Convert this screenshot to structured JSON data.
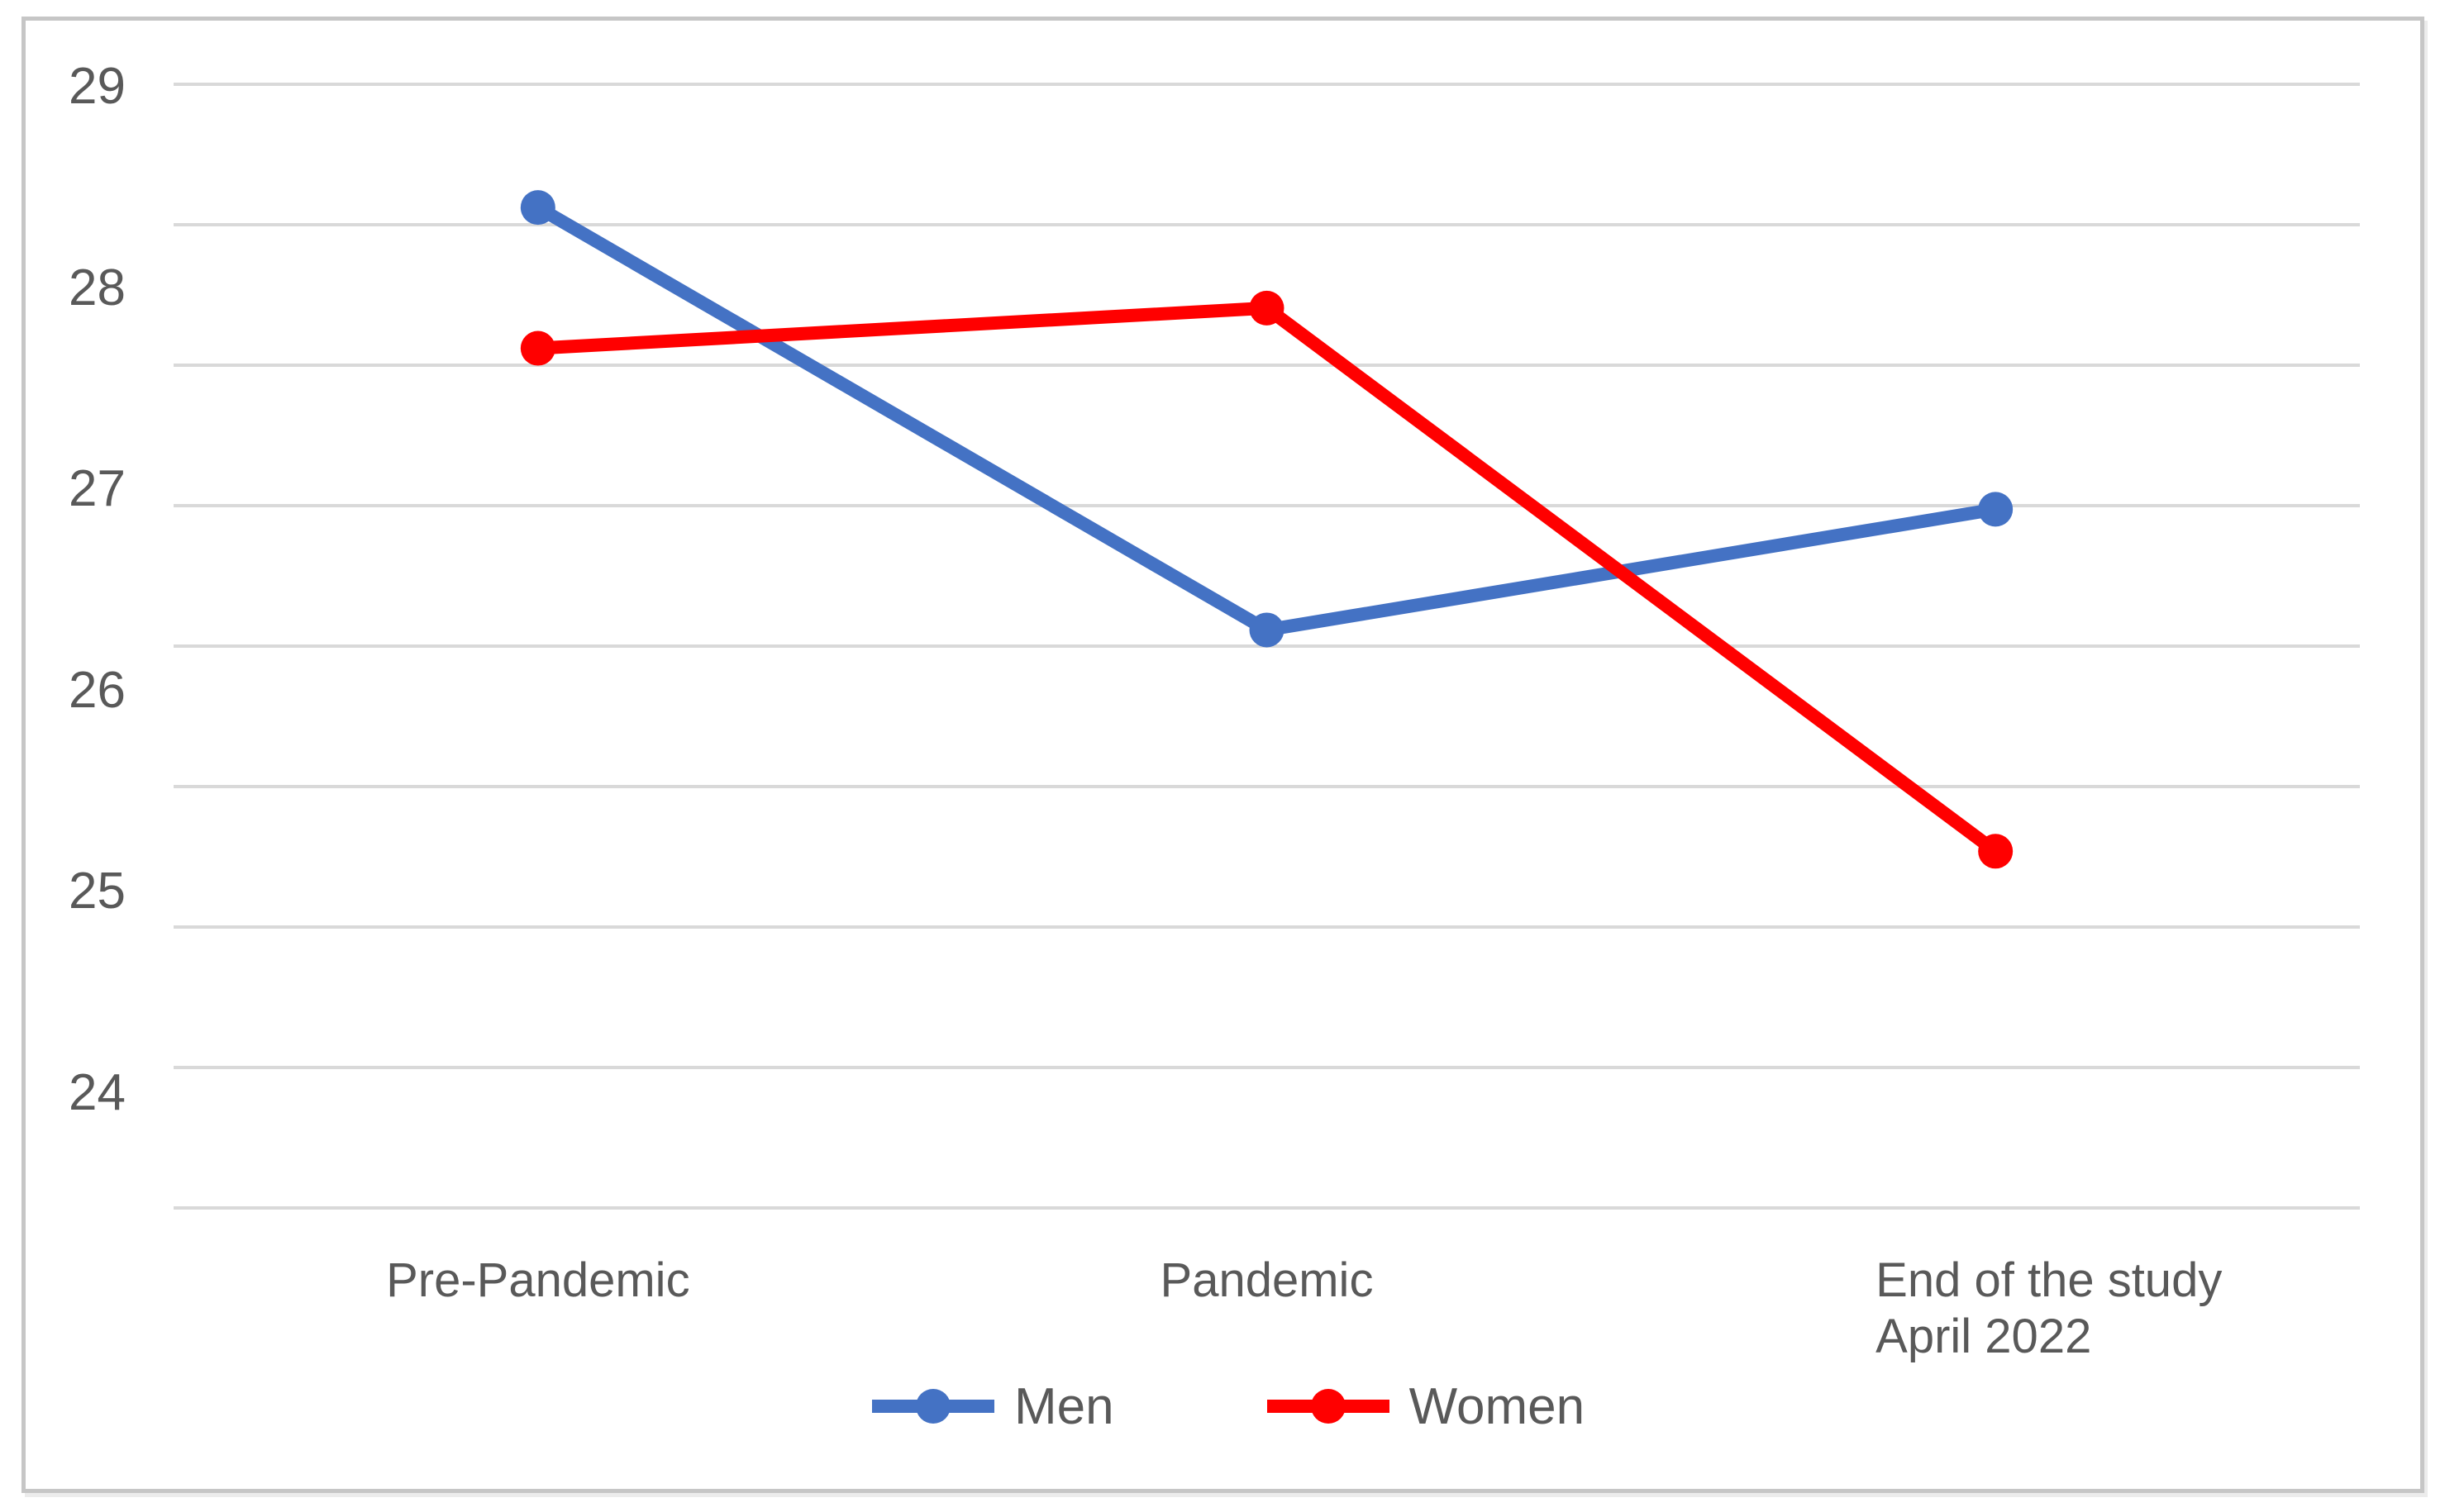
{
  "window": {
    "background": "#ffffff",
    "frame_border_color": "#c6c6c6",
    "text_color": "#595959"
  },
  "chart_data": {
    "type": "line",
    "title": "",
    "xlabel": "",
    "ylabel": "",
    "categories": [
      "Pre-Pandemic",
      "Pandemic",
      "End of the study April 2022"
    ],
    "category_label_lines": [
      [
        "Pre-Pandemic"
      ],
      [
        "Pandemic"
      ],
      [
        "End of the study",
        "April 2022"
      ]
    ],
    "series": [
      {
        "name": "Men",
        "color": "#4472C4",
        "values": [
          28.4,
          26.3,
          26.9
        ]
      },
      {
        "name": "Women",
        "color": "#FF0000",
        "values": [
          27.7,
          27.9,
          25.2
        ]
      }
    ],
    "y_axis": {
      "tick_labels": [
        29,
        28,
        27,
        26,
        25,
        24
      ],
      "top_tick": 29,
      "bottom_tick": 24
    },
    "grid": {
      "horizontal_line_count": 9,
      "color": "#d9d9d9",
      "vertical": false
    },
    "legend": {
      "position": "bottom-center",
      "entries": [
        "Men",
        "Women"
      ]
    }
  }
}
